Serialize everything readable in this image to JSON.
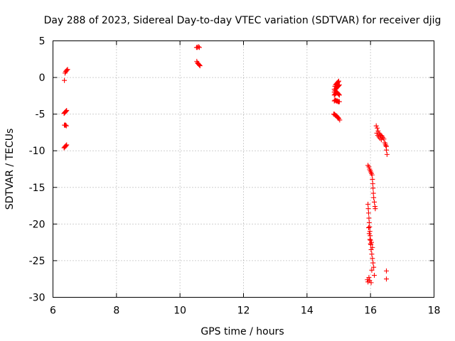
{
  "chart_data": {
    "type": "scatter",
    "title": "Day 288 of 2023, Sidereal Day-to-day VTEC variation (SDTVAR) for receiver djig",
    "xlabel": "GPS time / hours",
    "ylabel": "SDTVAR / TECUs",
    "xlim": [
      6,
      18
    ],
    "ylim": [
      -30,
      5
    ],
    "xticks": [
      6,
      8,
      10,
      12,
      14,
      16,
      18
    ],
    "yticks": [
      5,
      0,
      -5,
      -10,
      -15,
      -20,
      -25,
      -30
    ],
    "grid": true,
    "marker": "+",
    "color": "#ff0000",
    "series": [
      {
        "name": "SDTVAR",
        "points": [
          [
            6.36,
            -0.4
          ],
          [
            6.38,
            0.6
          ],
          [
            6.4,
            0.8
          ],
          [
            6.42,
            0.9
          ],
          [
            6.44,
            1.0
          ],
          [
            6.46,
            1.1
          ],
          [
            6.35,
            -4.9
          ],
          [
            6.37,
            -4.8
          ],
          [
            6.39,
            -4.7
          ],
          [
            6.41,
            -4.6
          ],
          [
            6.43,
            -4.5
          ],
          [
            6.36,
            -6.5
          ],
          [
            6.38,
            -6.5
          ],
          [
            6.4,
            -6.5
          ],
          [
            6.42,
            -6.6
          ],
          [
            6.35,
            -9.6
          ],
          [
            6.37,
            -9.5
          ],
          [
            6.39,
            -9.4
          ],
          [
            6.41,
            -9.3
          ],
          [
            6.43,
            -9.2
          ],
          [
            10.52,
            4.1
          ],
          [
            10.55,
            4.1
          ],
          [
            10.58,
            4.2
          ],
          [
            10.61,
            4.1
          ],
          [
            10.53,
            2.2
          ],
          [
            10.55,
            2.0
          ],
          [
            10.57,
            1.9
          ],
          [
            10.59,
            1.8
          ],
          [
            10.61,
            1.7
          ],
          [
            10.63,
            1.6
          ],
          [
            14.86,
            -1.6
          ],
          [
            14.88,
            -1.2
          ],
          [
            14.9,
            -1.0
          ],
          [
            14.92,
            -0.9
          ],
          [
            14.94,
            -0.8
          ],
          [
            14.96,
            -0.7
          ],
          [
            14.98,
            -0.6
          ],
          [
            15.0,
            -0.5
          ],
          [
            14.86,
            -2.0
          ],
          [
            14.88,
            -1.8
          ],
          [
            14.9,
            -1.6
          ],
          [
            14.92,
            -1.5
          ],
          [
            14.94,
            -1.4
          ],
          [
            14.96,
            -1.3
          ],
          [
            14.98,
            -1.2
          ],
          [
            15.0,
            -1.1
          ],
          [
            15.02,
            -1.0
          ],
          [
            14.86,
            -2.4
          ],
          [
            14.88,
            -2.3
          ],
          [
            14.9,
            -2.2
          ],
          [
            14.92,
            -2.1
          ],
          [
            14.94,
            -2.0
          ],
          [
            14.96,
            -2.1
          ],
          [
            14.98,
            -2.2
          ],
          [
            15.0,
            -2.3
          ],
          [
            15.02,
            -2.4
          ],
          [
            14.86,
            -3.2
          ],
          [
            14.88,
            -3.1
          ],
          [
            14.9,
            -3.1
          ],
          [
            14.92,
            -3.2
          ],
          [
            14.94,
            -3.2
          ],
          [
            14.96,
            -3.2
          ],
          [
            14.98,
            -3.3
          ],
          [
            15.0,
            -3.3
          ],
          [
            15.02,
            -3.3
          ],
          [
            14.84,
            -5.0
          ],
          [
            14.86,
            -5.0
          ],
          [
            14.88,
            -5.1
          ],
          [
            14.9,
            -5.2
          ],
          [
            14.92,
            -5.2
          ],
          [
            14.94,
            -5.3
          ],
          [
            14.96,
            -5.4
          ],
          [
            14.98,
            -5.5
          ],
          [
            15.0,
            -5.6
          ],
          [
            15.03,
            -5.8
          ],
          [
            15.92,
            -12.0
          ],
          [
            15.95,
            -12.2
          ],
          [
            15.97,
            -12.5
          ],
          [
            15.99,
            -12.7
          ],
          [
            16.01,
            -12.9
          ],
          [
            16.03,
            -13.1
          ],
          [
            16.05,
            -13.3
          ],
          [
            16.06,
            -13.9
          ],
          [
            16.07,
            -14.5
          ],
          [
            16.08,
            -15.1
          ],
          [
            16.09,
            -15.8
          ],
          [
            16.1,
            -16.4
          ],
          [
            16.12,
            -17.0
          ],
          [
            16.14,
            -17.6
          ],
          [
            16.15,
            -17.9
          ],
          [
            15.92,
            -17.3
          ],
          [
            15.93,
            -17.9
          ],
          [
            15.94,
            -18.5
          ],
          [
            15.95,
            -19.2
          ],
          [
            15.96,
            -19.8
          ],
          [
            15.97,
            -20.4
          ],
          [
            15.98,
            -21.0
          ],
          [
            15.99,
            -21.6
          ],
          [
            16.0,
            -22.2
          ],
          [
            16.01,
            -22.8
          ],
          [
            16.02,
            -23.5
          ],
          [
            16.04,
            -24.1
          ],
          [
            16.06,
            -24.7
          ],
          [
            16.08,
            -25.3
          ],
          [
            16.1,
            -25.9
          ],
          [
            15.94,
            -20.5
          ],
          [
            15.96,
            -21.3
          ],
          [
            15.98,
            -22.1
          ],
          [
            16.0,
            -22.7
          ],
          [
            16.03,
            -22.5
          ],
          [
            16.06,
            -23.2
          ],
          [
            15.9,
            -27.6
          ],
          [
            15.92,
            -27.9
          ],
          [
            15.95,
            -27.3
          ],
          [
            15.97,
            -27.7
          ],
          [
            16.02,
            -28.0
          ],
          [
            16.04,
            -26.3
          ],
          [
            16.12,
            -27.0
          ],
          [
            16.18,
            -6.6
          ],
          [
            16.21,
            -6.9
          ],
          [
            16.24,
            -7.3
          ],
          [
            16.27,
            -7.6
          ],
          [
            16.3,
            -7.8
          ],
          [
            16.33,
            -7.9
          ],
          [
            16.36,
            -8.0
          ],
          [
            16.39,
            -8.2
          ],
          [
            16.42,
            -8.4
          ],
          [
            16.45,
            -8.9
          ],
          [
            16.48,
            -9.3
          ],
          [
            16.5,
            -9.9
          ],
          [
            16.52,
            -10.5
          ],
          [
            16.2,
            -7.6
          ],
          [
            16.23,
            -7.9
          ],
          [
            16.26,
            -8.1
          ],
          [
            16.3,
            -8.3
          ],
          [
            16.34,
            -8.5
          ],
          [
            16.47,
            -9.1
          ],
          [
            16.5,
            -9.4
          ],
          [
            16.5,
            -26.4
          ],
          [
            16.5,
            -27.5
          ]
        ]
      }
    ]
  }
}
